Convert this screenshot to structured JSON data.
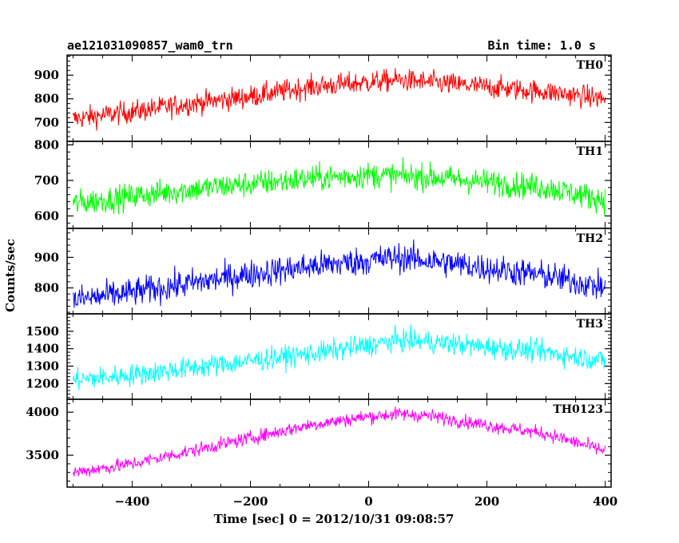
{
  "chart_data": {
    "type": "line",
    "title": "ae121031090857_wam0_trn",
    "subtitle": "Bin time: 1.0 s",
    "xlabel": "Time [sec] 0 = 2012/10/31 09:08:57",
    "ylabel": "Counts/sec",
    "xlim": [
      -510,
      410
    ],
    "x_ticks": [
      -400,
      -200,
      0,
      200,
      400
    ],
    "x_tick_labels": [
      "−400",
      "−200",
      "0",
      "200",
      "400"
    ],
    "grid": false,
    "panels": [
      {
        "name": "TH0",
        "color": "#ff0000",
        "ylim": [
          620,
          985
        ],
        "y_ticks": [
          700,
          800,
          900
        ],
        "y_tick_labels": [
          "700",
          "800",
          "900"
        ],
        "x_trend": [
          -500,
          -400,
          -300,
          -200,
          -100,
          0,
          50,
          100,
          200,
          300,
          400
        ],
        "y_trend": [
          715,
          745,
          780,
          810,
          850,
          870,
          880,
          870,
          850,
          830,
          800
        ],
        "noise_amplitude": 45
      },
      {
        "name": "TH1",
        "color": "#00ff00",
        "ylim": [
          565,
          810
        ],
        "y_ticks": [
          600,
          700,
          800
        ],
        "y_tick_labels": [
          "600",
          "700",
          "800"
        ],
        "x_trend": [
          -500,
          -400,
          -300,
          -200,
          -100,
          0,
          100,
          200,
          300,
          400
        ],
        "y_trend": [
          635,
          655,
          675,
          690,
          705,
          715,
          710,
          695,
          680,
          645
        ],
        "noise_amplitude": 35
      },
      {
        "name": "TH2",
        "color": "#0000ff",
        "ylim": [
          715,
          995
        ],
        "y_ticks": [
          800,
          900
        ],
        "y_tick_labels": [
          "800",
          "900"
        ],
        "x_trend": [
          -500,
          -400,
          -300,
          -200,
          -100,
          0,
          50,
          100,
          200,
          300,
          400
        ],
        "y_trend": [
          760,
          785,
          815,
          845,
          870,
          890,
          900,
          890,
          865,
          840,
          800
        ],
        "noise_amplitude": 45
      },
      {
        "name": "TH3",
        "color": "#00ffff",
        "ylim": [
          1110,
          1600
        ],
        "y_ticks": [
          1200,
          1300,
          1400,
          1500
        ],
        "y_tick_labels": [
          "1200",
          "1300",
          "1400",
          "1500"
        ],
        "x_trend": [
          -500,
          -400,
          -300,
          -200,
          -100,
          0,
          50,
          100,
          200,
          300,
          400
        ],
        "y_trend": [
          1220,
          1250,
          1290,
          1330,
          1370,
          1420,
          1450,
          1440,
          1410,
          1380,
          1330
        ],
        "noise_amplitude": 60
      },
      {
        "name": "TH0123",
        "color": "#ff00ff",
        "ylim": [
          3130,
          4150
        ],
        "y_ticks": [
          3500,
          4000
        ],
        "y_tick_labels": [
          "3500",
          "4000"
        ],
        "x_trend": [
          -500,
          -400,
          -300,
          -200,
          -100,
          0,
          50,
          100,
          200,
          300,
          400
        ],
        "y_trend": [
          3300,
          3400,
          3550,
          3700,
          3850,
          3950,
          3980,
          3960,
          3850,
          3750,
          3550
        ],
        "noise_amplitude": 75
      }
    ]
  }
}
